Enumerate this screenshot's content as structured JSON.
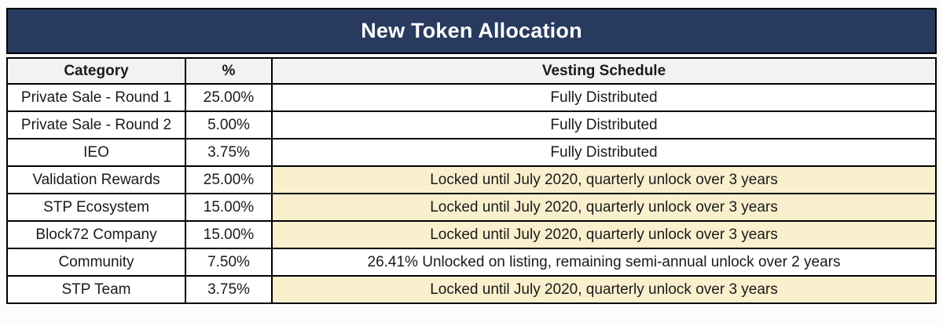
{
  "title": "New Token Allocation",
  "colors": {
    "title_bg": "#283A5E",
    "title_text": "#FFFFFF",
    "header_bg": "#F2F2F2",
    "row_bg": "#FFFFFF",
    "highlight_bg": "#FAF0CE",
    "border": "#000000"
  },
  "columns": [
    "Category",
    "%",
    "Vesting Schedule"
  ],
  "rows": [
    {
      "category": "Private Sale - Round 1",
      "percent": "25.00%",
      "vesting": "Fully Distributed",
      "highlight": false
    },
    {
      "category": "Private Sale - Round 2",
      "percent": "5.00%",
      "vesting": "Fully Distributed",
      "highlight": false
    },
    {
      "category": "IEO",
      "percent": "3.75%",
      "vesting": "Fully Distributed",
      "highlight": false
    },
    {
      "category": "Validation Rewards",
      "percent": "25.00%",
      "vesting": "Locked until July 2020, quarterly unlock over 3 years",
      "highlight": true
    },
    {
      "category": "STP Ecosystem",
      "percent": "15.00%",
      "vesting": "Locked until July 2020, quarterly unlock over 3 years",
      "highlight": true
    },
    {
      "category": "Block72 Company",
      "percent": "15.00%",
      "vesting": "Locked until July 2020, quarterly unlock over 3 years",
      "highlight": true
    },
    {
      "category": "Community",
      "percent": "7.50%",
      "vesting": "26.41% Unlocked on listing, remaining semi-annual unlock over 2 years",
      "highlight": false
    },
    {
      "category": "STP Team",
      "percent": "3.75%",
      "vesting": "Locked until July 2020, quarterly unlock over 3 years",
      "highlight": true
    }
  ]
}
